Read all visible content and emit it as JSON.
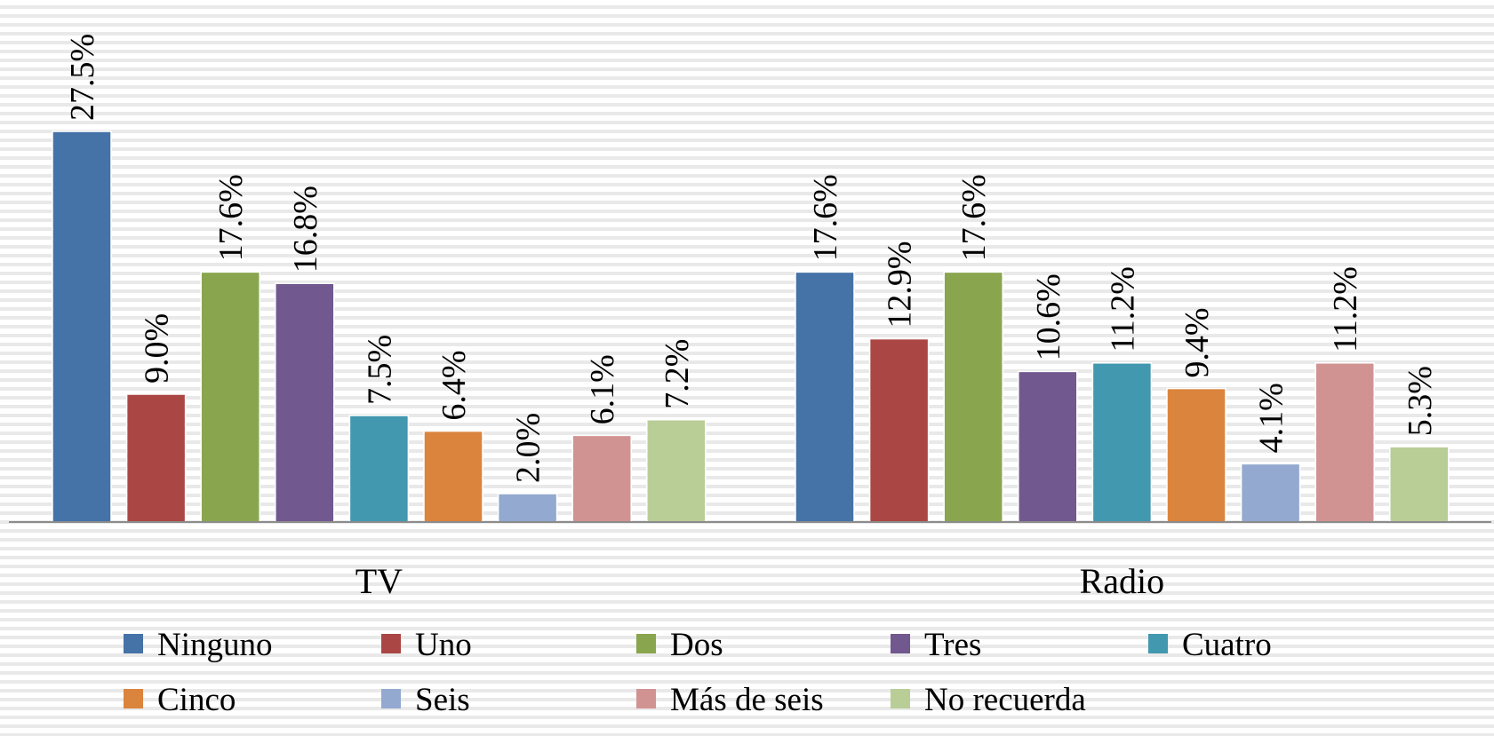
{
  "chart_data": {
    "type": "bar",
    "categories": [
      "TV",
      "Radio"
    ],
    "series": [
      {
        "name": "Ninguno",
        "color": "#4572A7",
        "values": [
          27.5,
          17.6
        ],
        "value_labels": [
          "27.5%",
          "17.6%"
        ]
      },
      {
        "name": "Uno",
        "color": "#AA4643",
        "values": [
          9.0,
          12.9
        ],
        "value_labels": [
          "9.0%",
          "12.9%"
        ]
      },
      {
        "name": "Dos",
        "color": "#89A54E",
        "values": [
          17.6,
          17.6
        ],
        "value_labels": [
          "17.6%",
          "17.6%"
        ]
      },
      {
        "name": "Tres",
        "color": "#71588F",
        "values": [
          16.8,
          10.6
        ],
        "value_labels": [
          "16.8%",
          "10.6%"
        ]
      },
      {
        "name": "Cuatro",
        "color": "#4198AF",
        "values": [
          7.5,
          11.2
        ],
        "value_labels": [
          "7.5%",
          "11.2%"
        ]
      },
      {
        "name": "Cinco",
        "color": "#DB843D",
        "values": [
          6.4,
          9.4
        ],
        "value_labels": [
          "6.4%",
          "9.4%"
        ]
      },
      {
        "name": "Seis",
        "color": "#93A9CF",
        "values": [
          2.0,
          4.1
        ],
        "value_labels": [
          "2.0%",
          "4.1%"
        ]
      },
      {
        "name": "Más de seis",
        "color": "#D19392",
        "values": [
          6.1,
          11.2
        ],
        "value_labels": [
          "6.1%",
          "11.2%"
        ]
      },
      {
        "name": "No recuerda",
        "color": "#B9CD96",
        "values": [
          7.2,
          5.3
        ],
        "value_labels": [
          "7.2%",
          "5.3%"
        ]
      }
    ]
  }
}
